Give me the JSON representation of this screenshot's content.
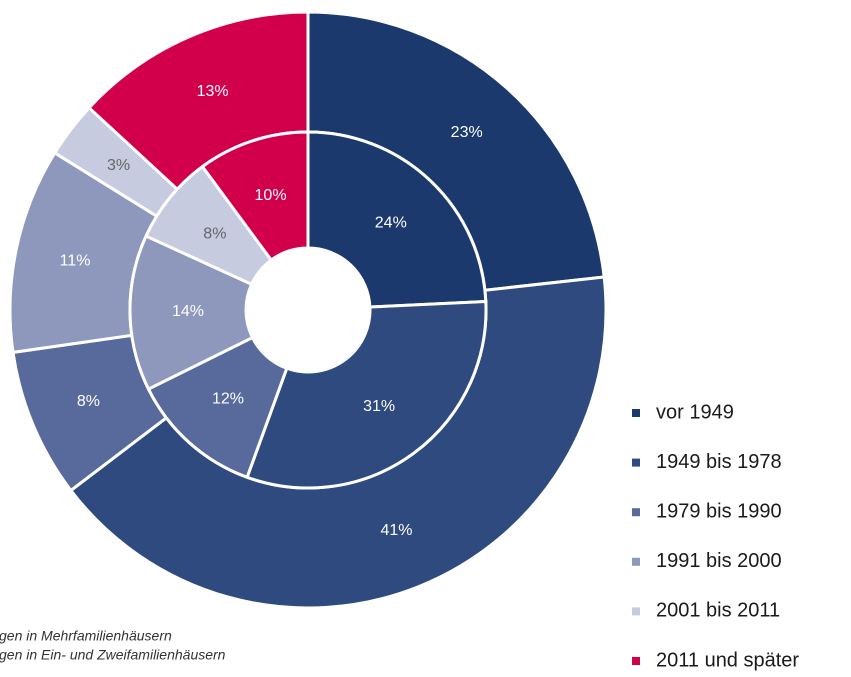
{
  "chart_data": {
    "type": "donut",
    "categories": [
      "vor 1949",
      "1949 bis 1978",
      "1979 bis 1990",
      "1991 bis 2000",
      "2001 bis 2011",
      "2011 und später"
    ],
    "colors": [
      "#1b396d",
      "#2f4a7e",
      "#58699b",
      "#8d98bc",
      "#c6cbe0",
      "#d2004b"
    ],
    "series": [
      {
        "name": "gen in Mehrfamilienhäusern",
        "values": [
          23,
          41,
          8,
          11,
          3,
          13
        ],
        "value_labels": [
          "23%",
          "41%",
          "8%",
          "11%",
          "3%",
          "13%"
        ]
      },
      {
        "name": "gen in Ein- und Zweifamilienhäusern",
        "values": [
          24,
          31,
          12,
          14,
          8,
          10
        ],
        "value_labels": [
          "24%",
          "31%",
          "12%",
          "14%",
          "8%",
          "10%"
        ]
      }
    ]
  }
}
